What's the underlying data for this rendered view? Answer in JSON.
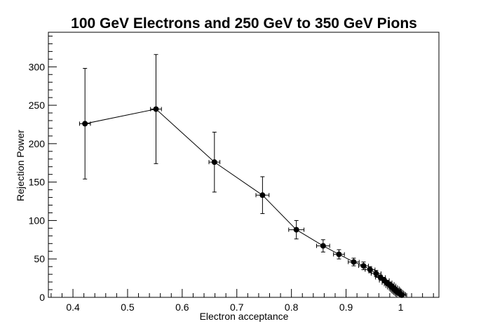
{
  "chart_data": {
    "type": "scatter",
    "title": "100 GeV Electrons and 250 GeV to 350 GeV Pions",
    "xlabel": "Electron acceptance",
    "ylabel": "Rejection Power",
    "xlim": [
      0.355,
      1.07
    ],
    "ylim": [
      0,
      345
    ],
    "x_ticks": [
      0.4,
      0.5,
      0.6,
      0.7,
      0.8,
      0.9,
      1
    ],
    "x_tick_labels": [
      "0.4",
      "0.5",
      "0.6",
      "0.7",
      "0.8",
      "0.9",
      "1"
    ],
    "y_ticks": [
      0,
      50,
      100,
      150,
      200,
      250,
      300
    ],
    "y_tick_labels": [
      "0",
      "50",
      "100",
      "150",
      "200",
      "250",
      "300"
    ],
    "grid": false,
    "legend": "none",
    "series": [
      {
        "marker_color": "#000000",
        "line_color": "#000000",
        "points": [
          {
            "x": 0.422,
            "y": 226,
            "xerr": 0.01,
            "ylo": 154,
            "yhi": 298
          },
          {
            "x": 0.552,
            "y": 245,
            "xerr": 0.01,
            "ylo": 174,
            "yhi": 316
          },
          {
            "x": 0.659,
            "y": 176,
            "xerr": 0.01,
            "ylo": 137,
            "yhi": 215
          },
          {
            "x": 0.747,
            "y": 133,
            "xerr": 0.012,
            "ylo": 109,
            "yhi": 157
          },
          {
            "x": 0.809,
            "y": 88,
            "xerr": 0.014,
            "ylo": 76,
            "yhi": 100
          },
          {
            "x": 0.858,
            "y": 67,
            "xerr": 0.012,
            "ylo": 59,
            "yhi": 75
          },
          {
            "x": 0.887,
            "y": 56,
            "xerr": 0.01,
            "ylo": 50,
            "yhi": 62
          },
          {
            "x": 0.914,
            "y": 46,
            "xerr": 0.01,
            "ylo": 41,
            "yhi": 51
          },
          {
            "x": 0.932,
            "y": 41,
            "xerr": 0.009,
            "ylo": 36,
            "yhi": 46
          },
          {
            "x": 0.944,
            "y": 36,
            "xerr": 0.009,
            "ylo": 32,
            "yhi": 40
          },
          {
            "x": 0.955,
            "y": 31,
            "xerr": 0.009,
            "ylo": 27,
            "yhi": 35
          },
          {
            "x": 0.963,
            "y": 26,
            "xerr": 0.009,
            "ylo": 23,
            "yhi": 29
          },
          {
            "x": 0.97,
            "y": 22,
            "xerr": 0.009,
            "ylo": 19,
            "yhi": 25
          },
          {
            "x": 0.975,
            "y": 19,
            "xerr": 0.009,
            "ylo": 16,
            "yhi": 22
          },
          {
            "x": 0.979,
            "y": 17,
            "xerr": 0.009,
            "ylo": 14,
            "yhi": 20
          },
          {
            "x": 0.982,
            "y": 15,
            "xerr": 0.009,
            "ylo": 12,
            "yhi": 18
          },
          {
            "x": 0.985,
            "y": 13,
            "xerr": 0.009,
            "ylo": 10.5,
            "yhi": 15.5
          },
          {
            "x": 0.988,
            "y": 11.5,
            "xerr": 0.009,
            "ylo": 9,
            "yhi": 14
          },
          {
            "x": 0.99,
            "y": 10,
            "xerr": 0.009,
            "ylo": 8,
            "yhi": 12
          },
          {
            "x": 0.992,
            "y": 8.5,
            "xerr": 0.009,
            "ylo": 7,
            "yhi": 10
          },
          {
            "x": 0.994,
            "y": 7.2,
            "xerr": 0.009,
            "ylo": 6,
            "yhi": 8.5
          },
          {
            "x": 0.996,
            "y": 6,
            "xerr": 0.009,
            "ylo": 5,
            "yhi": 7
          },
          {
            "x": 0.998,
            "y": 4.8,
            "xerr": 0.009,
            "ylo": 4,
            "yhi": 5.6
          },
          {
            "x": 1.0,
            "y": 3.8,
            "xerr": 0.009,
            "ylo": 3.2,
            "yhi": 4.4
          },
          {
            "x": 1.002,
            "y": 2.8,
            "xerr": 0.009,
            "ylo": 2.3,
            "yhi": 3.3
          }
        ]
      }
    ]
  }
}
